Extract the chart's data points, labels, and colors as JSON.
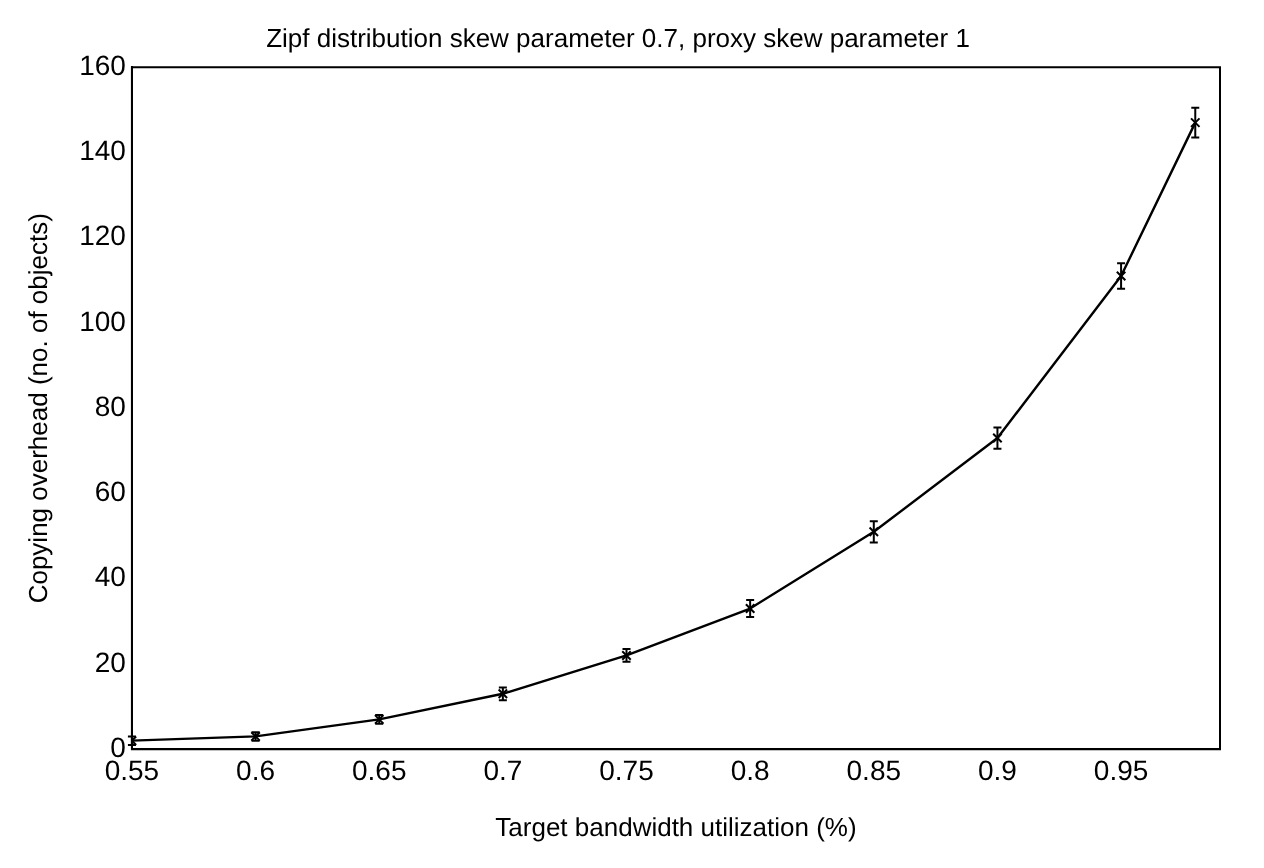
{
  "chart_data": {
    "type": "line",
    "title": "Zipf distribution skew parameter 0.7, proxy skew parameter 1",
    "xlabel": "Target bandwidth utilization (%)",
    "ylabel": "Copying overhead (no. of objects)",
    "x": [
      0.55,
      0.6,
      0.65,
      0.7,
      0.75,
      0.8,
      0.85,
      0.9,
      0.95,
      0.98
    ],
    "series": [
      {
        "color": "#000000",
        "values": [
          2,
          3,
          7,
          13,
          22,
          33,
          51,
          73,
          111,
          147
        ],
        "errors": [
          1,
          1,
          1,
          1.5,
          1.5,
          2,
          2.5,
          2.5,
          3,
          3.5
        ]
      }
    ],
    "xlim": [
      0.55,
      0.99
    ],
    "xticks": [
      0.55,
      0.6,
      0.65,
      0.7,
      0.75,
      0.8,
      0.85,
      0.9,
      0.95
    ],
    "ylim": [
      0,
      160
    ],
    "yticks": [
      0,
      20,
      40,
      60,
      80,
      100,
      120,
      140,
      160
    ],
    "grid": false,
    "legend": false,
    "marker": "cross",
    "line_style": "solid"
  }
}
